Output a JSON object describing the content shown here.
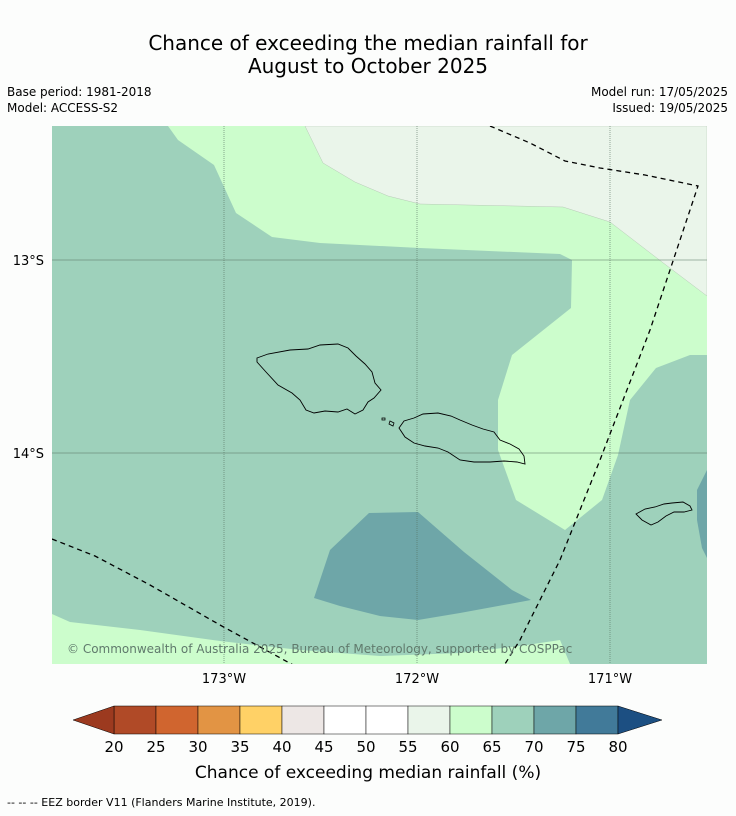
{
  "title": {
    "line1": "Chance of exceeding the median rainfall for",
    "line2": "August to October 2025"
  },
  "meta": {
    "base_period": "Base period: 1981-2018",
    "model": "Model: ACCESS-S2",
    "model_run": "Model run: 17/05/2025",
    "issued": "Issued: 19/05/2025"
  },
  "map": {
    "lat_labels": [
      "13°S",
      "14°S"
    ],
    "lon_labels": [
      "173°W",
      "172°W",
      "171°W"
    ],
    "copyright": "© Commonwealth of Australia 2025, Bureau of Meteorology, supported by COSPPac",
    "colors": {
      "band_60_65": "#ccfdcc",
      "band_65_70": "#9ed1bb",
      "band_70_75": "#6ea6a8",
      "band_55_60": "#eaf5ea",
      "land_outline": "#000000"
    }
  },
  "colorbar": {
    "ticks": [
      "20",
      "25",
      "30",
      "35",
      "40",
      "45",
      "50",
      "55",
      "60",
      "65",
      "70",
      "75",
      "80"
    ],
    "colors": [
      "#b04a27",
      "#d0652f",
      "#e29444",
      "#ffd166",
      "#ede7e5",
      "#ffffff",
      "#ffffff",
      "#eaf5ea",
      "#ccfdcc",
      "#9ed1bb",
      "#6ea6a8",
      "#417a99"
    ],
    "under_color": "#9c3a1f",
    "over_color": "#1c4f82",
    "label": "Chance of exceeding median rainfall (%)"
  },
  "footer": {
    "legend": "--  --  -- EEZ border V11 (Flanders Marine Institute, 2019)."
  }
}
